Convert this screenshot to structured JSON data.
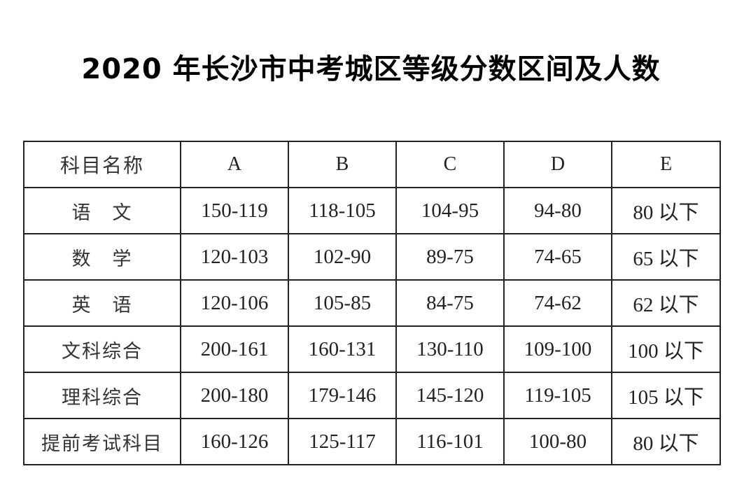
{
  "title": "2020 年长沙市中考城区等级分数区间及人数",
  "table": {
    "headers": [
      "科目名称",
      "A",
      "B",
      "C",
      "D",
      "E"
    ],
    "rows": [
      [
        "语　文",
        "150-119",
        "118-105",
        "104-95",
        "94-80",
        "80 以下"
      ],
      [
        "数　学",
        "120-103",
        "102-90",
        "89-75",
        "74-65",
        "65 以下"
      ],
      [
        "英　语",
        "120-106",
        "105-85",
        "84-75",
        "74-62",
        "62 以下"
      ],
      [
        "文科综合",
        "200-161",
        "160-131",
        "130-110",
        "109-100",
        "100 以下"
      ],
      [
        "理科综合",
        "200-180",
        "179-146",
        "145-120",
        "119-105",
        "105 以下"
      ],
      [
        "提前考试科目",
        "160-126",
        "125-117",
        "116-101",
        "100-80",
        "80 以下"
      ]
    ]
  }
}
